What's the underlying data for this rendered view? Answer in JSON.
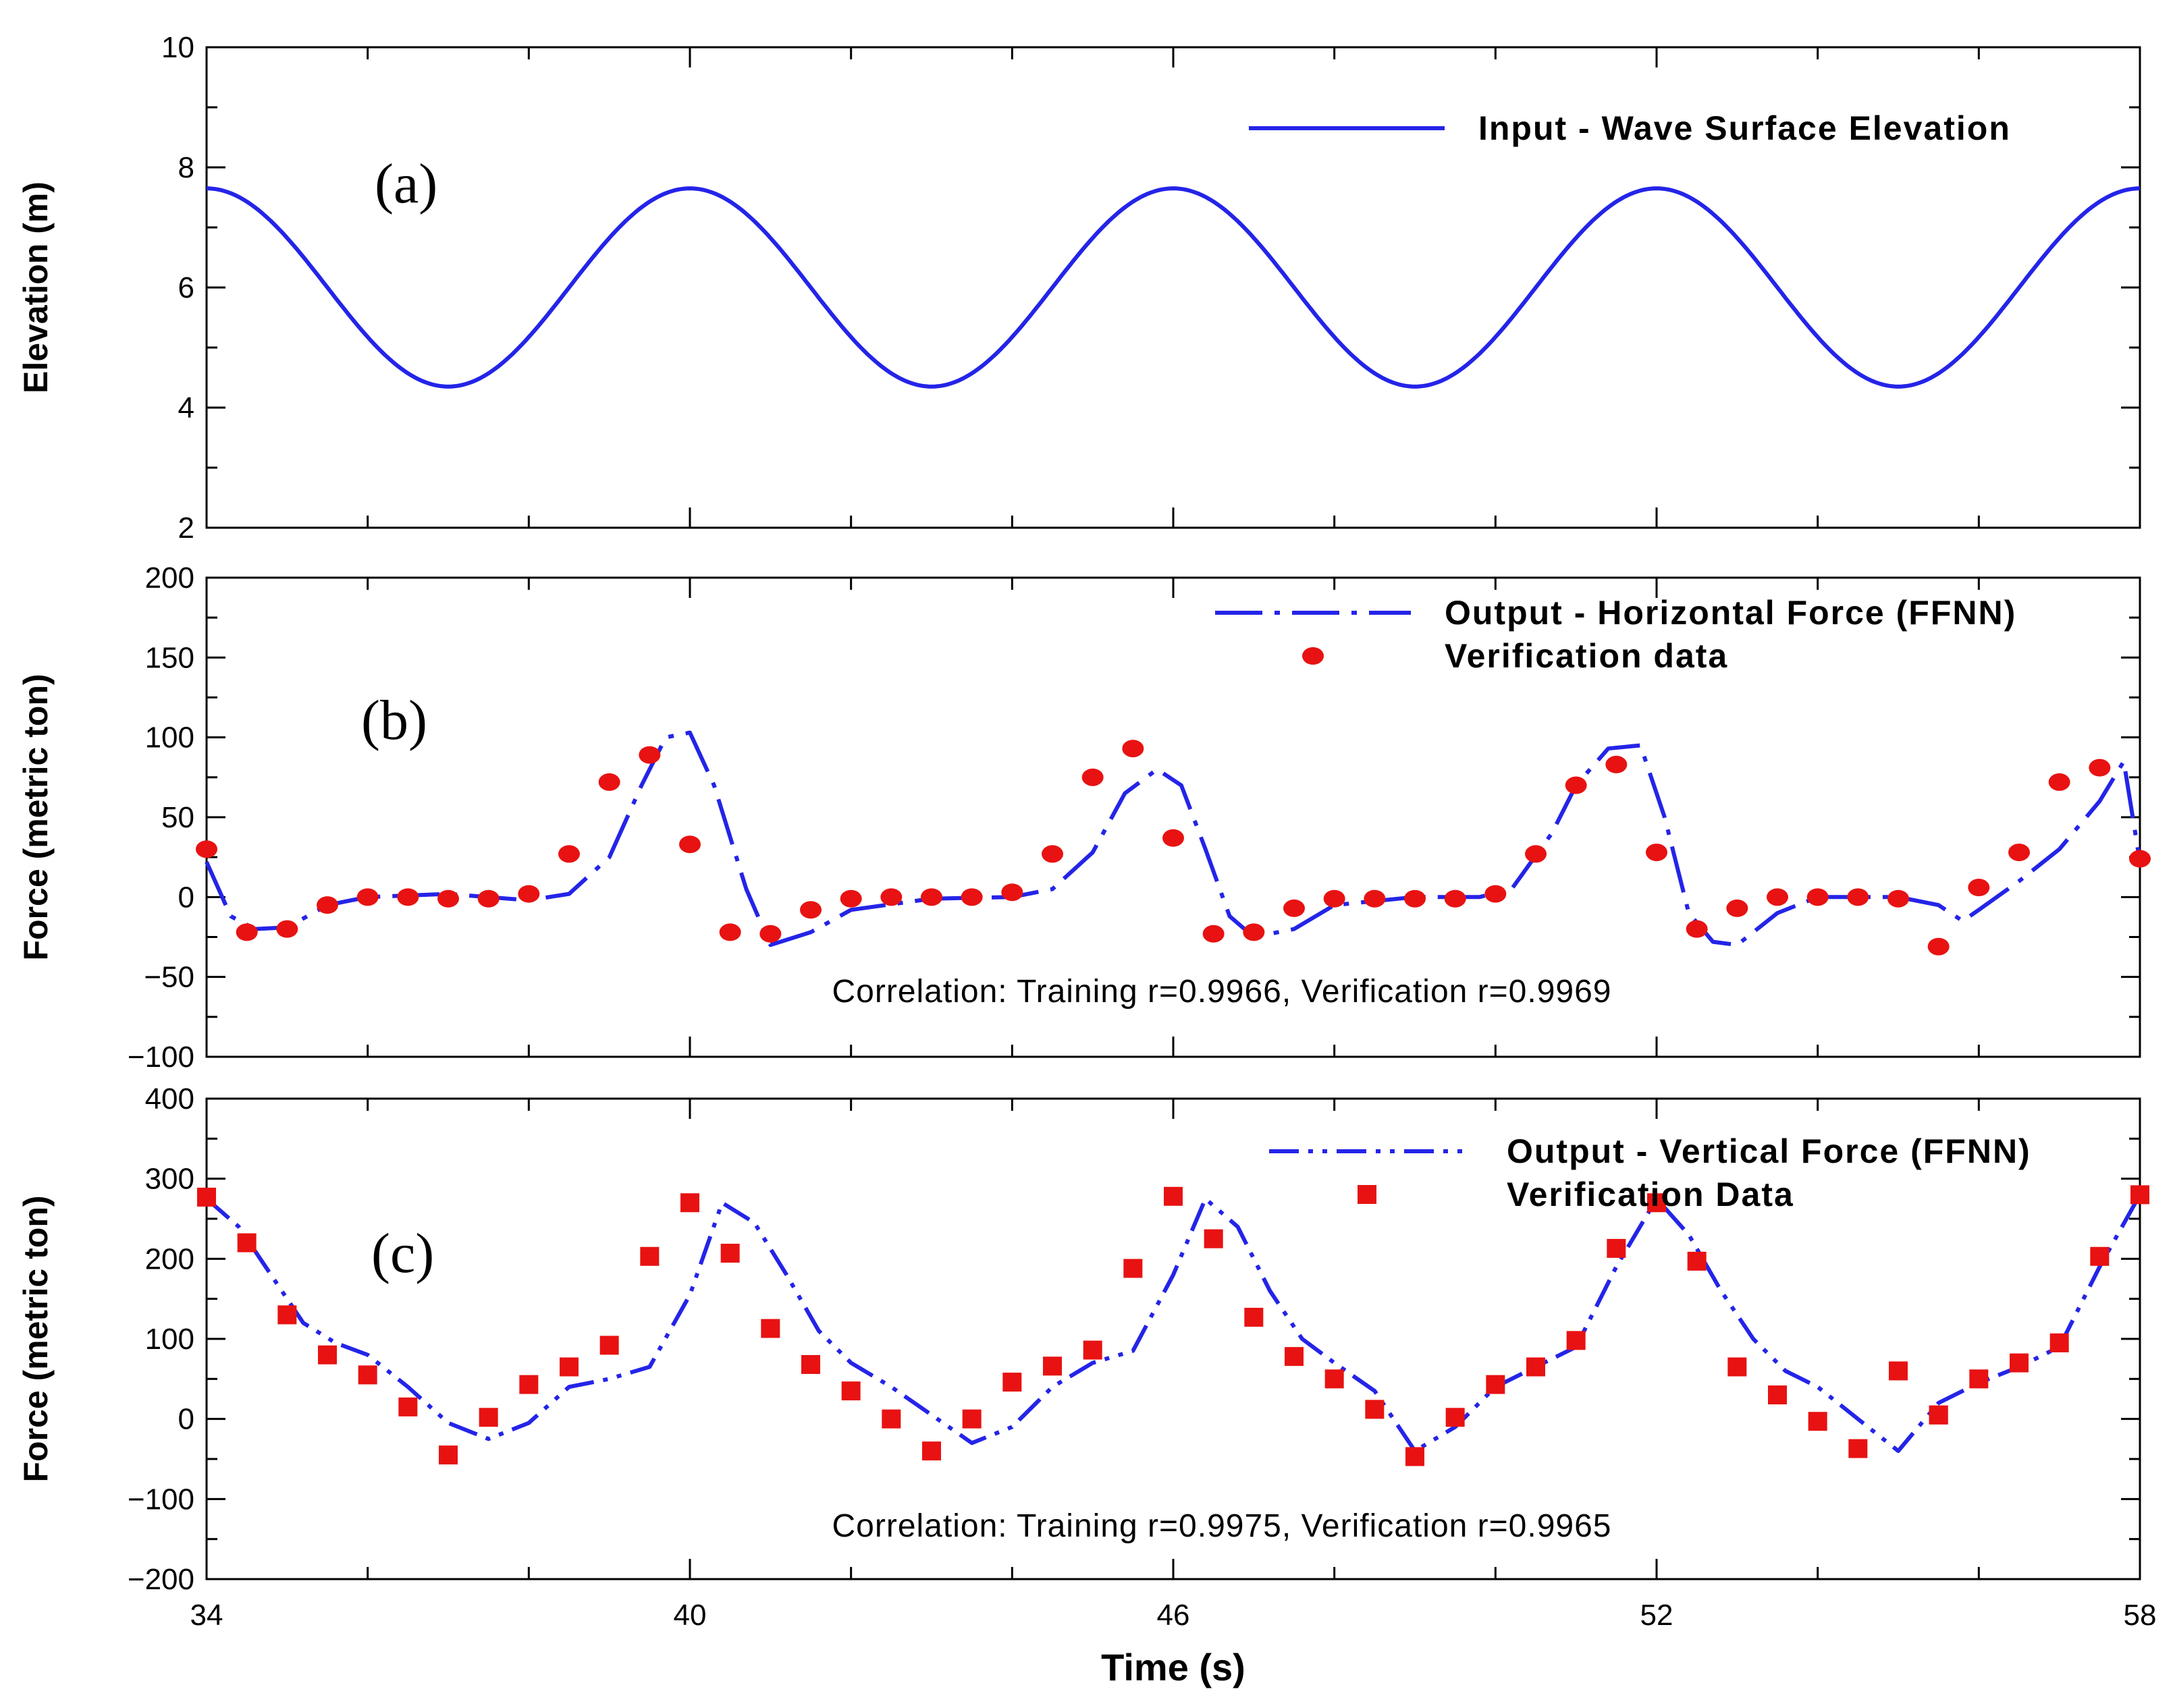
{
  "chart_data": [
    {
      "panel": "a",
      "type": "line",
      "panel_label": "(a)",
      "ylabel": "Elevation (m)",
      "xlim": [
        34,
        58
      ],
      "ylim": [
        2,
        10
      ],
      "yticks": [
        2,
        4,
        6,
        8,
        10
      ],
      "legend_position": "top-right",
      "series": [
        {
          "name": "Input - Wave Surface Elevation",
          "style": "solid",
          "color": "#2424E8",
          "function": {
            "mean": 6.0,
            "amplitude": 1.65,
            "period_s": 6.0,
            "crest_time_s": 34.0
          }
        }
      ]
    },
    {
      "panel": "b",
      "type": "line",
      "panel_label": "(b)",
      "ylabel": "Force (metric ton)",
      "xlim": [
        34,
        58
      ],
      "ylim": [
        -100,
        200
      ],
      "yticks": [
        -100,
        -50,
        0,
        50,
        100,
        150,
        200
      ],
      "legend_position": "top-right",
      "annotation": "Correlation: Training r=0.9966, Verification r=0.9969",
      "series": [
        {
          "name": "Output - Horizontal Force (FFNN)",
          "style": "dash-dot",
          "color": "#2424E8",
          "x": [
            34,
            34.3,
            34.6,
            35,
            35.5,
            36,
            37,
            38,
            38.5,
            39,
            39.4,
            39.7,
            40,
            40.3,
            40.7,
            41,
            41.5,
            42,
            43,
            44,
            44.5,
            45,
            45.4,
            45.8,
            46.1,
            46.4,
            46.7,
            47,
            47.5,
            48,
            49,
            49.8,
            50.2,
            50.7,
            51,
            51.4,
            51.8,
            52.1,
            52.4,
            52.7,
            53,
            53.5,
            54,
            55,
            55.5,
            55.8,
            56,
            56.5,
            57,
            57.5,
            57.8,
            58
          ],
          "y": [
            22,
            -12,
            -20,
            -19,
            -5,
            0,
            2,
            -2,
            2,
            25,
            70,
            100,
            103,
            70,
            5,
            -30,
            -22,
            -8,
            -1,
            0,
            5,
            28,
            65,
            80,
            70,
            30,
            -12,
            -25,
            -20,
            -5,
            0,
            0,
            5,
            40,
            70,
            93,
            95,
            50,
            -10,
            -28,
            -30,
            -10,
            0,
            0,
            -5,
            -15,
            -8,
            10,
            30,
            60,
            85,
            22
          ]
        },
        {
          "name": "Verification data",
          "style": "marker-circle",
          "color": "#E81212",
          "x": [
            34,
            34.5,
            35,
            35.5,
            36,
            36.5,
            37,
            37.5,
            38,
            38.5,
            39,
            39.5,
            40,
            40.5,
            41,
            41.5,
            42,
            42.5,
            43,
            43.5,
            44,
            44.5,
            45,
            45.5,
            46,
            46.5,
            47,
            47.5,
            48,
            48.5,
            49,
            49.5,
            50,
            50.5,
            51,
            51.5,
            52,
            52.5,
            53,
            53.5,
            54,
            54.5,
            55,
            55.5,
            56,
            56.5,
            57,
            57.5,
            58
          ],
          "y": [
            30,
            -22,
            -20,
            -5,
            0,
            0,
            -1,
            -1,
            2,
            27,
            72,
            89,
            33,
            -22,
            -23,
            -8,
            -1,
            0,
            0,
            0,
            3,
            27,
            75,
            93,
            37,
            -23,
            -22,
            -7,
            -1,
            -1,
            -1,
            -1,
            2,
            27,
            70,
            83,
            28,
            -20,
            -7,
            0,
            0,
            0,
            -1,
            -31,
            6,
            28,
            72,
            81,
            24
          ]
        }
      ]
    },
    {
      "panel": "c",
      "type": "line",
      "panel_label": "(c)",
      "ylabel": "Force (metric ton)",
      "xlabel": "Time (s)",
      "xlim": [
        34,
        58
      ],
      "ylim": [
        -200,
        400
      ],
      "xticks": [
        34,
        40,
        46,
        52,
        58
      ],
      "yticks": [
        -200,
        -100,
        0,
        100,
        200,
        300,
        400
      ],
      "legend_position": "top-right",
      "annotation": "Correlation: Training r=0.9975, Verification r=0.9965",
      "series": [
        {
          "name": "Output - Vertical Force (FFNN)",
          "style": "dash-dot-dot",
          "color": "#2424E8",
          "x": [
            34,
            34.4,
            34.8,
            35.2,
            35.6,
            36,
            36.5,
            37,
            37.5,
            38,
            38.5,
            39,
            39.5,
            40,
            40.4,
            40.8,
            41.2,
            41.6,
            42,
            42.5,
            43,
            43.5,
            44,
            44.5,
            45,
            45.5,
            46,
            46.4,
            46.8,
            47.2,
            47.6,
            48,
            48.5,
            49,
            49.5,
            50,
            50.5,
            51,
            51.5,
            52,
            52.4,
            52.8,
            53.2,
            53.6,
            54,
            54.5,
            55,
            55.5,
            56,
            56.5,
            57,
            57.5,
            58
          ],
          "y": [
            275,
            240,
            180,
            120,
            95,
            80,
            40,
            -5,
            -25,
            -5,
            40,
            50,
            65,
            155,
            270,
            245,
            180,
            110,
            70,
            40,
            5,
            -30,
            -10,
            40,
            70,
            85,
            180,
            275,
            240,
            160,
            100,
            70,
            35,
            -40,
            -10,
            40,
            65,
            90,
            190,
            275,
            230,
            160,
            100,
            60,
            40,
            0,
            -40,
            20,
            45,
            65,
            90,
            190,
            280
          ]
        },
        {
          "name": "Verification Data",
          "style": "marker-square",
          "color": "#E81212",
          "x": [
            34,
            34.5,
            35,
            35.5,
            36,
            36.5,
            37,
            37.5,
            38,
            38.5,
            39,
            39.5,
            40,
            40.5,
            41,
            41.5,
            42,
            42.5,
            43,
            43.5,
            44,
            44.5,
            45,
            45.5,
            46,
            46.5,
            47,
            47.5,
            48,
            48.5,
            49,
            49.5,
            50,
            50.5,
            51,
            51.5,
            52,
            52.5,
            53,
            53.5,
            54,
            54.5,
            55,
            55.5,
            55.5,
            56,
            56.5,
            57,
            57.5,
            58
          ],
          "y": [
            277,
            220,
            130,
            80,
            55,
            15,
            -45,
            2,
            43,
            65,
            92,
            203,
            270,
            207,
            113,
            68,
            35,
            0,
            -40,
            0,
            46,
            66,
            86,
            188,
            278,
            225,
            127,
            78,
            50,
            12,
            -47,
            2,
            43,
            65,
            98,
            213,
            270,
            197,
            65,
            30,
            -3,
            -37,
            60,
            5,
            5,
            50,
            70,
            95,
            203,
            280
          ]
        }
      ]
    }
  ],
  "shared_xticks": [
    34,
    40,
    46,
    52,
    58
  ]
}
